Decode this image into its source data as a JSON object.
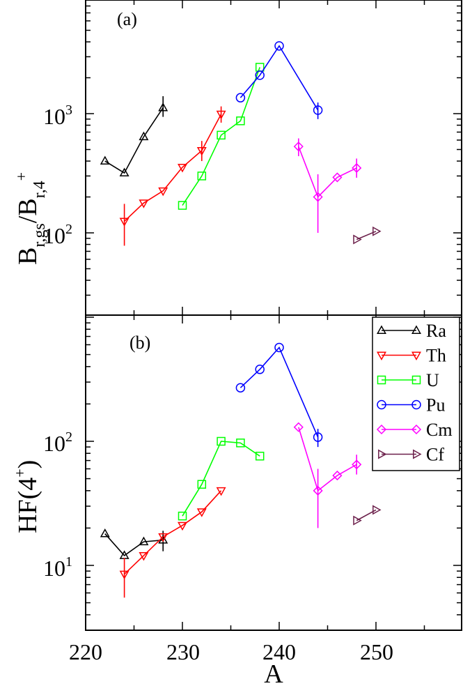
{
  "chart_data": [
    {
      "panel": "(a)",
      "type": "line",
      "yscale": "log",
      "ylabel": {
        "main": "B",
        "sub1": "r,gs",
        "mid": "/B",
        "sub2": "r,4",
        "sup2": "+"
      },
      "xlim": [
        220,
        259
      ],
      "ylim": [
        20,
        9000
      ],
      "series": [
        {
          "name": "Ra",
          "color": "#000000",
          "marker": "triangle-up",
          "points": [
            {
              "x": 222,
              "y": 400
            },
            {
              "x": 224,
              "y": 318
            },
            {
              "x": 226,
              "y": 640
            },
            {
              "x": 228,
              "y": 1120,
              "err_lo": 940,
              "err_hi": 1400
            }
          ]
        },
        {
          "name": "Th",
          "color": "#ff0000",
          "marker": "triangle-down",
          "points": [
            {
              "x": 224,
              "y": 125,
              "err_lo": 78,
              "err_hi": 175
            },
            {
              "x": 226,
              "y": 178
            },
            {
              "x": 228,
              "y": 225
            },
            {
              "x": 230,
              "y": 355
            },
            {
              "x": 232,
              "y": 490,
              "err_lo": 400,
              "err_hi": 590
            },
            {
              "x": 234,
              "y": 990,
              "err_lo": 840,
              "err_hi": 1150
            }
          ]
        },
        {
          "name": "U",
          "color": "#00ff00",
          "marker": "square",
          "points": [
            {
              "x": 230,
              "y": 170
            },
            {
              "x": 232,
              "y": 300
            },
            {
              "x": 234,
              "y": 660
            },
            {
              "x": 236,
              "y": 870
            },
            {
              "x": 238,
              "y": 2450
            }
          ]
        },
        {
          "name": "Pu",
          "color": "#0000ff",
          "marker": "circle",
          "points": [
            {
              "x": 236,
              "y": 1360
            },
            {
              "x": 238,
              "y": 2100
            },
            {
              "x": 240,
              "y": 3700
            },
            {
              "x": 244,
              "y": 1070,
              "err_lo": 900,
              "err_hi": 1240
            }
          ]
        },
        {
          "name": "Cm",
          "color": "#ff00ff",
          "marker": "diamond",
          "points": [
            {
              "x": 242,
              "y": 530,
              "err_lo": 440,
              "err_hi": 620
            },
            {
              "x": 244,
              "y": 200,
              "err_lo": 100,
              "err_hi": 310
            },
            {
              "x": 246,
              "y": 292
            },
            {
              "x": 248,
              "y": 350,
              "err_lo": 290,
              "err_hi": 420
            }
          ]
        },
        {
          "name": "Cf",
          "color": "#6b1f4a",
          "marker": "triangle-right",
          "points": [
            {
              "x": 248,
              "y": 88
            },
            {
              "x": 250,
              "y": 103
            }
          ]
        }
      ]
    },
    {
      "panel": "(b)",
      "type": "line",
      "yscale": "log",
      "ylabel": {
        "main": "HF(4",
        "sup": "+",
        "end": ")"
      },
      "xlabel": "A",
      "xlim": [
        220,
        259
      ],
      "ylim": [
        3,
        900
      ],
      "xticks": [
        "220",
        "230",
        "240",
        "250"
      ],
      "series": [
        {
          "name": "Ra",
          "color": "#000000",
          "marker": "triangle-up",
          "points": [
            {
              "x": 222,
              "y": 18
            },
            {
              "x": 224,
              "y": 12
            },
            {
              "x": 226,
              "y": 15.5
            },
            {
              "x": 228,
              "y": 16,
              "err_lo": 13,
              "err_hi": 19
            }
          ]
        },
        {
          "name": "Th",
          "color": "#ff0000",
          "marker": "triangle-down",
          "points": [
            {
              "x": 224,
              "y": 8.5,
              "err_lo": 5.5,
              "err_hi": 11.5
            },
            {
              "x": 226,
              "y": 12
            },
            {
              "x": 228,
              "y": 17
            },
            {
              "x": 230,
              "y": 21
            },
            {
              "x": 232,
              "y": 27
            },
            {
              "x": 234,
              "y": 40
            }
          ]
        },
        {
          "name": "U",
          "color": "#00ff00",
          "marker": "square",
          "points": [
            {
              "x": 230,
              "y": 25
            },
            {
              "x": 232,
              "y": 45
            },
            {
              "x": 234,
              "y": 100
            },
            {
              "x": 236,
              "y": 97
            },
            {
              "x": 238,
              "y": 76
            }
          ]
        },
        {
          "name": "Pu",
          "color": "#0000ff",
          "marker": "circle",
          "points": [
            {
              "x": 236,
              "y": 270
            },
            {
              "x": 238,
              "y": 380
            },
            {
              "x": 240,
              "y": 570
            },
            {
              "x": 244,
              "y": 108,
              "err_lo": 90,
              "err_hi": 126
            }
          ]
        },
        {
          "name": "Cm",
          "color": "#ff00ff",
          "marker": "diamond",
          "points": [
            {
              "x": 242,
              "y": 130
            },
            {
              "x": 244,
              "y": 40,
              "err_lo": 20,
              "err_hi": 60
            },
            {
              "x": 246,
              "y": 53
            },
            {
              "x": 248,
              "y": 65,
              "err_lo": 54,
              "err_hi": 78
            }
          ]
        },
        {
          "name": "Cf",
          "color": "#6b1f4a",
          "marker": "triangle-right",
          "points": [
            {
              "x": 248,
              "y": 23
            },
            {
              "x": 250,
              "y": 28
            }
          ]
        }
      ]
    }
  ],
  "axes": {
    "a": {
      "ytick_labels": [
        {
          "base": "10",
          "exp": "2",
          "value": 100
        },
        {
          "base": "10",
          "exp": "3",
          "value": 1000
        }
      ]
    },
    "b": {
      "ytick_labels": [
        {
          "base": "10",
          "exp": "1",
          "value": 10
        },
        {
          "base": "10",
          "exp": "2",
          "value": 100
        }
      ]
    }
  },
  "legend": {
    "position": "top-right of panel (b)",
    "entries": [
      "Ra",
      "Th",
      "U",
      "Pu",
      "Cm",
      "Cf"
    ]
  }
}
